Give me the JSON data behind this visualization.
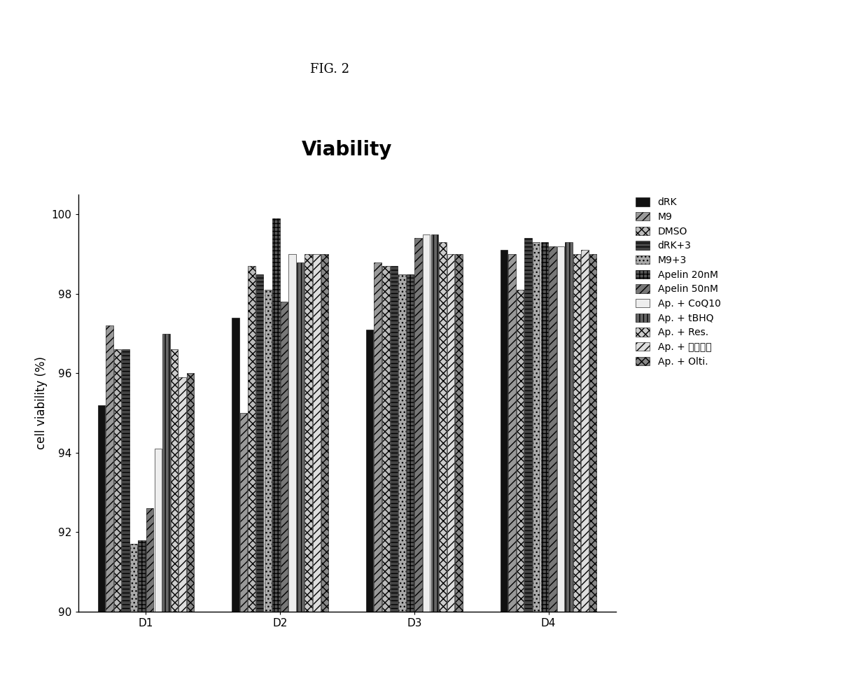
{
  "title": "Viability",
  "fig_label": "FIG. 2",
  "ylabel": "cell viability (%)",
  "ylim": [
    90,
    100.5
  ],
  "yticks": [
    90,
    92,
    94,
    96,
    98,
    100
  ],
  "groups": [
    "D1",
    "D2",
    "D3",
    "D4"
  ],
  "series_labels": [
    "dRK",
    "M9",
    "DMSO",
    "dRK+3",
    "M9+3",
    "Apelin 20nM",
    "Apelin 50nM",
    "Ap. + CoQ10",
    "Ap. + tBHQ",
    "Ap. + Res.",
    "Ap. + 오리나무",
    "Ap. + Olti."
  ],
  "values": {
    "D1": [
      95.2,
      97.2,
      96.6,
      96.6,
      91.7,
      91.8,
      92.6,
      94.1,
      97.0,
      96.6,
      95.9,
      96.0
    ],
    "D2": [
      97.4,
      95.0,
      98.7,
      98.5,
      98.1,
      99.9,
      97.8,
      99.0,
      98.8,
      99.0,
      99.0,
      99.0
    ],
    "D3": [
      97.1,
      98.8,
      98.7,
      98.7,
      98.5,
      98.5,
      99.4,
      99.5,
      99.5,
      99.3,
      99.0,
      99.0
    ],
    "D4": [
      99.1,
      99.0,
      98.1,
      99.4,
      99.3,
      99.3,
      99.2,
      99.2,
      99.3,
      99.0,
      99.1,
      99.0
    ]
  },
  "bar_styles": [
    {
      "color": "#111111",
      "hatch": ""
    },
    {
      "color": "#999999",
      "hatch": "///"
    },
    {
      "color": "#bbbbbb",
      "hatch": "xxx"
    },
    {
      "color": "#444444",
      "hatch": "---"
    },
    {
      "color": "#aaaaaa",
      "hatch": "..."
    },
    {
      "color": "#555555",
      "hatch": "+++"
    },
    {
      "color": "#777777",
      "hatch": "///"
    },
    {
      "color": "#eeeeee",
      "hatch": ""
    },
    {
      "color": "#666666",
      "hatch": "|||"
    },
    {
      "color": "#cccccc",
      "hatch": "xxx"
    },
    {
      "color": "#dddddd",
      "hatch": "///"
    },
    {
      "color": "#888888",
      "hatch": "xxx"
    }
  ],
  "background_color": "#ffffff",
  "title_fontsize": 20,
  "fig_label_fontsize": 13,
  "axis_fontsize": 12,
  "tick_fontsize": 11,
  "legend_fontsize": 10
}
